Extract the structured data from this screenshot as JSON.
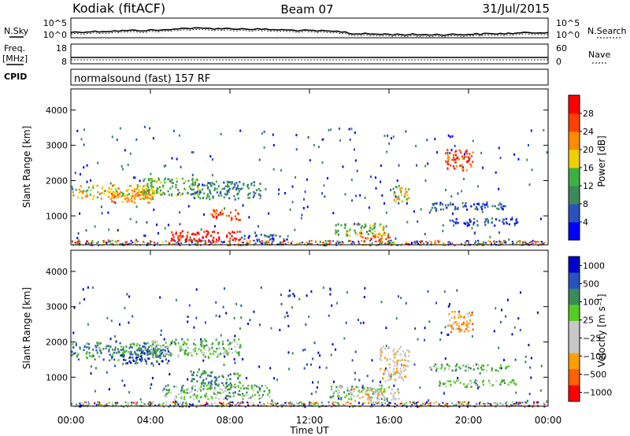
{
  "header": {
    "station": "Kodiak (fitACF)",
    "beam": "Beam 07",
    "date": "31/Jul/2015"
  },
  "side_labels": {
    "nsky": "N.Sky",
    "nsearch": "N.Search",
    "freq_line1": "Freq.",
    "freq_line2": "[MHz]",
    "nave": "Nave",
    "cpid": "CPID"
  },
  "noise_panel": {
    "left_ticks": [
      "10^5",
      "10^0"
    ],
    "right_ticks": [
      "10^5",
      "10^0"
    ]
  },
  "freq_panel": {
    "left_ticks": [
      "18",
      "8"
    ],
    "right_ticks": [
      "60",
      "0"
    ]
  },
  "cpid_text": "normalsound (fast) 157 RF",
  "colors": {
    "power": [
      "#0000ff",
      "#2a52be",
      "#3c8a5a",
      "#3cb043",
      "#f0d000",
      "#ff8c00",
      "#ff4000",
      "#ff0000"
    ],
    "velocity": [
      "#0000cc",
      "#2a52be",
      "#3c8a5a",
      "#55cc22",
      "#c8c8c8",
      "#c8c8c8",
      "#ffa000",
      "#ff6000",
      "#ff0000"
    ],
    "ground_scatter": "#c8c8c8"
  },
  "chart_data": [
    {
      "type": "heatmap",
      "name": "power",
      "ylabel": "Slant Range [km]",
      "xlabel": "Time UT",
      "x_ticks": [
        "00:00",
        "04:00",
        "08:00",
        "12:00",
        "16:00",
        "20:00",
        "00:00"
      ],
      "y_ticks": [
        "1000",
        "2000",
        "3000",
        "4000"
      ],
      "ylim": [
        180,
        4600
      ],
      "xlim_hours": [
        0,
        24
      ],
      "colorbar": {
        "label": "Power [dB]",
        "ticks": [
          "4",
          "8",
          "12",
          "16",
          "20",
          "24",
          "28"
        ]
      },
      "blobs": [
        {
          "t0": 0.0,
          "t1": 4.2,
          "r0": 1500,
          "r1": 1900,
          "level": 5
        },
        {
          "t0": 2.0,
          "t1": 4.0,
          "r0": 1400,
          "r1": 1800,
          "level": 6
        },
        {
          "t0": 3.5,
          "t1": 6.5,
          "r0": 1600,
          "r1": 2100,
          "level": 4
        },
        {
          "t0": 6.0,
          "t1": 9.5,
          "r0": 1500,
          "r1": 2000,
          "level": 3
        },
        {
          "t0": 7.0,
          "t1": 8.5,
          "r0": 900,
          "r1": 1200,
          "level": 7
        },
        {
          "t0": 5.0,
          "t1": 8.5,
          "r0": 300,
          "r1": 600,
          "level": 8
        },
        {
          "t0": 8.5,
          "t1": 11.0,
          "r0": 350,
          "r1": 500,
          "level": 2
        },
        {
          "t0": 13.2,
          "t1": 16.0,
          "r0": 450,
          "r1": 800,
          "level": 4
        },
        {
          "t0": 14.5,
          "t1": 16.0,
          "r0": 350,
          "r1": 550,
          "level": 7
        },
        {
          "t0": 16.2,
          "t1": 17.0,
          "r0": 1400,
          "r1": 1900,
          "level": 5
        },
        {
          "t0": 18.8,
          "t1": 20.2,
          "r0": 2300,
          "r1": 2900,
          "level": 7
        },
        {
          "t0": 18.0,
          "t1": 22.0,
          "r0": 1200,
          "r1": 1400,
          "level": 2
        },
        {
          "t0": 19.0,
          "t1": 22.5,
          "r0": 750,
          "r1": 950,
          "level": 2
        }
      ]
    },
    {
      "type": "heatmap",
      "name": "velocity",
      "ylabel": "Slant Range [km]",
      "xlabel": "Time UT",
      "x_ticks": [
        "00:00",
        "04:00",
        "08:00",
        "12:00",
        "16:00",
        "20:00",
        "00:00"
      ],
      "y_ticks": [
        "1000",
        "2000",
        "3000",
        "4000"
      ],
      "ylim": [
        180,
        4600
      ],
      "xlim_hours": [
        0,
        24
      ],
      "colorbar": {
        "label": "Velocity [m s⁻¹]",
        "ticks": [
          "1000",
          "500",
          "100",
          "25",
          "−25",
          "−100",
          "−500",
          "−1000"
        ]
      },
      "blobs": [
        {
          "t0": 0.0,
          "t1": 4.5,
          "r0": 1500,
          "r1": 2000,
          "level": 3
        },
        {
          "t0": 2.5,
          "t1": 5.0,
          "r0": 1400,
          "r1": 1800,
          "level": 2
        },
        {
          "t0": 4.0,
          "t1": 8.5,
          "r0": 1600,
          "r1": 2100,
          "level": 4
        },
        {
          "t0": 6.0,
          "t1": 8.5,
          "r0": 800,
          "r1": 1200,
          "level": 3
        },
        {
          "t0": 4.5,
          "t1": 10.0,
          "r0": 400,
          "r1": 800,
          "level": 4
        },
        {
          "t0": 13.0,
          "t1": 16.0,
          "r0": 400,
          "r1": 800,
          "level": 4
        },
        {
          "t0": 14.0,
          "t1": 16.5,
          "r0": 350,
          "r1": 700,
          "level": 6
        },
        {
          "t0": 15.5,
          "t1": 17.0,
          "r0": 900,
          "r1": 1900,
          "level": 6
        },
        {
          "t0": 18.8,
          "t1": 20.2,
          "r0": 2300,
          "r1": 2900,
          "level": 7
        },
        {
          "t0": 18.0,
          "t1": 22.0,
          "r0": 1200,
          "r1": 1400,
          "level": 4
        },
        {
          "t0": 18.5,
          "t1": 22.5,
          "r0": 750,
          "r1": 950,
          "level": 4
        }
      ]
    }
  ]
}
